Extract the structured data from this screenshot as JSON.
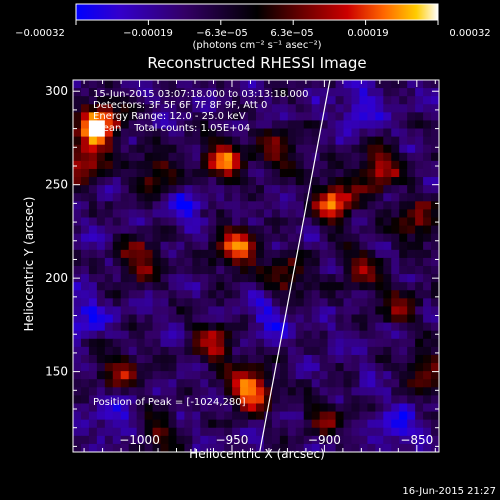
{
  "chart_data": {
    "type": "heatmap",
    "title": "Reconstructed RHESSI Image",
    "xlabel": "Heliocentric X (arcsec)",
    "ylabel": "Heliocentric Y (arcsec)",
    "xlim": [
      -1036,
      -838
    ],
    "ylim": [
      107,
      306
    ],
    "x_ticks": [
      -1000,
      -950,
      -900,
      -850
    ],
    "x_tick_labels": [
      "−1000",
      "−950",
      "−900",
      "−850"
    ],
    "y_ticks": [
      150,
      200,
      250,
      300
    ],
    "y_tick_labels": [
      "150",
      "200",
      "250",
      "300"
    ],
    "colorbar": {
      "min": -0.00032,
      "max": 0.00032,
      "tick_labels": [
        "−0.00032",
        "−0.00019",
        "−6.3e−05",
        "6.3e−05",
        "0.00019",
        "0.00032"
      ],
      "unit_label": "(photons cm⁻² s⁻¹ asec⁻²)",
      "colors": [
        "#0000ff",
        "#3300cc",
        "#330066",
        "#000000",
        "#660000",
        "#cc0000",
        "#ff6600",
        "#ffcc00",
        "#ffffff"
      ]
    },
    "annotations": {
      "time_range": "15-Jun-2015 03:07:18.000 to 03:13:18.000",
      "detectors": "Detectors: 3F 5F 6F 7F 8F 9F, Att 0",
      "energy_range": "Energy Range: 12.0 - 25.0 keV",
      "method_line": "Clean    Total counts: 1.05E+04",
      "peak_position": "Position of Peak = [-1024,280]",
      "timestamp": "16-Jun-2015 21:27"
    },
    "limb_line": {
      "x_at_ybottom": -935,
      "x_at_ytop": -897
    },
    "hotspots": [
      {
        "x": -1022,
        "y": 282,
        "strength": 1.0
      },
      {
        "x": -1030,
        "y": 262,
        "strength": 0.6
      },
      {
        "x": -990,
        "y": 256,
        "strength": 0.5
      },
      {
        "x": -955,
        "y": 263,
        "strength": 0.7
      },
      {
        "x": -925,
        "y": 268,
        "strength": 0.5
      },
      {
        "x": -895,
        "y": 240,
        "strength": 0.8
      },
      {
        "x": -870,
        "y": 258,
        "strength": 0.6
      },
      {
        "x": -850,
        "y": 230,
        "strength": 0.5
      },
      {
        "x": -948,
        "y": 216,
        "strength": 0.75
      },
      {
        "x": -1000,
        "y": 210,
        "strength": 0.55
      },
      {
        "x": -920,
        "y": 200,
        "strength": 0.5
      },
      {
        "x": -880,
        "y": 205,
        "strength": 0.45
      },
      {
        "x": -860,
        "y": 185,
        "strength": 0.4
      },
      {
        "x": -1010,
        "y": 150,
        "strength": 0.5
      },
      {
        "x": -960,
        "y": 165,
        "strength": 0.55
      },
      {
        "x": -940,
        "y": 140,
        "strength": 0.85
      },
      {
        "x": -845,
        "y": 150,
        "strength": 0.5
      },
      {
        "x": -990,
        "y": 118,
        "strength": 0.4
      },
      {
        "x": -900,
        "y": 125,
        "strength": 0.35
      }
    ],
    "coldspots": [
      {
        "x": -1030,
        "y": 180
      },
      {
        "x": -1012,
        "y": 128
      },
      {
        "x": -930,
        "y": 180
      },
      {
        "x": -975,
        "y": 240
      },
      {
        "x": -880,
        "y": 290
      },
      {
        "x": -860,
        "y": 120
      }
    ]
  }
}
